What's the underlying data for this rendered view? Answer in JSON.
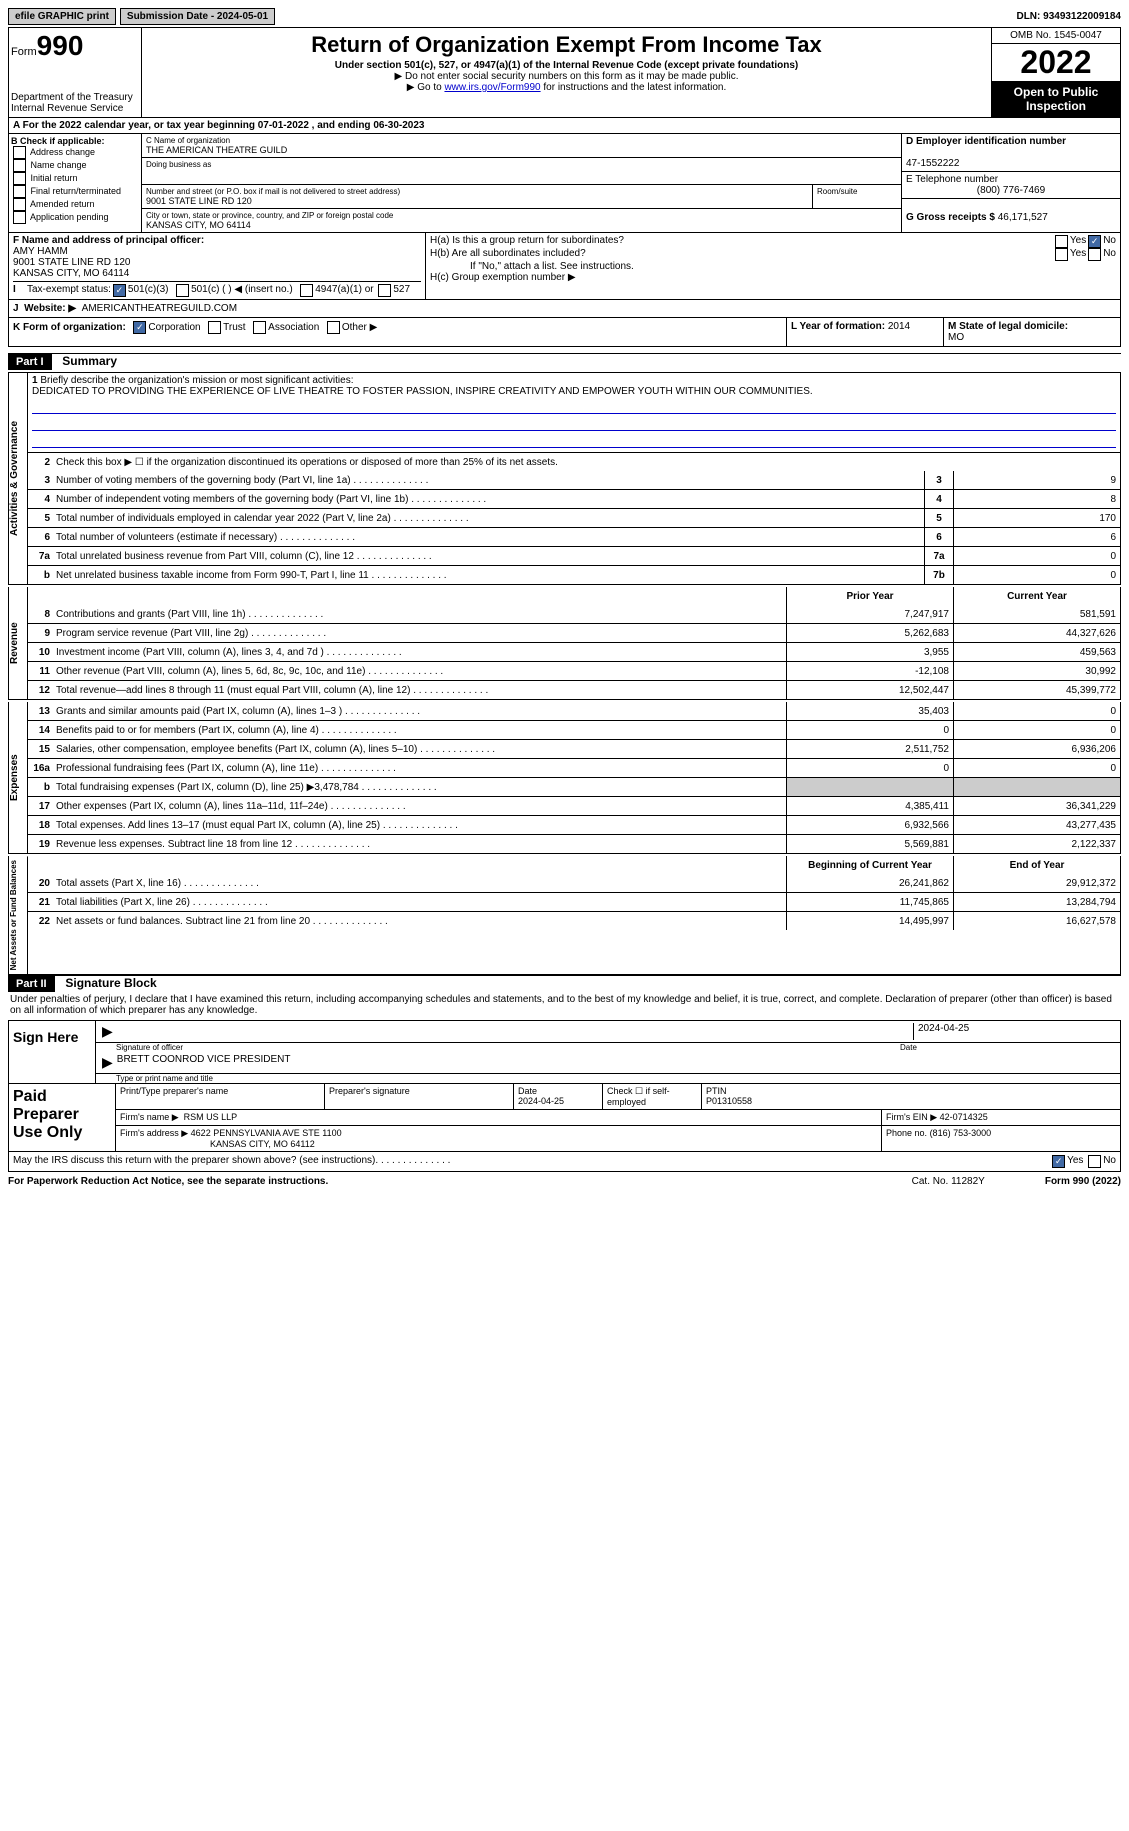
{
  "top": {
    "efile": "efile GRAPHIC print",
    "subdate_lbl": "Submission Date - 2024-05-01",
    "dln": "DLN: 93493122009184"
  },
  "header": {
    "form_word": "Form",
    "form_num": "990",
    "dept": "Department of the Treasury",
    "irs": "Internal Revenue Service",
    "title": "Return of Organization Exempt From Income Tax",
    "sub1": "Under section 501(c), 527, or 4947(a)(1) of the Internal Revenue Code (except private foundations)",
    "note1": "▶ Do not enter social security numbers on this form as it may be made public.",
    "note2_pre": "▶ Go to ",
    "note2_link": "www.irs.gov/Form990",
    "note2_post": " for instructions and the latest information.",
    "omb": "OMB No. 1545-0047",
    "year": "2022",
    "otp": "Open to Public Inspection"
  },
  "period": "A For the 2022 calendar year, or tax year beginning 07-01-2022   , and ending 06-30-2023",
  "b": {
    "label": "B Check if applicable:",
    "opts": [
      "Address change",
      "Name change",
      "Initial return",
      "Final return/terminated",
      "Amended return",
      "Application pending"
    ]
  },
  "c": {
    "name_lbl": "C Name of organization",
    "name": "THE AMERICAN THEATRE GUILD",
    "dba_lbl": "Doing business as",
    "addr_lbl": "Number and street (or P.O. box if mail is not delivered to street address)",
    "room_lbl": "Room/suite",
    "addr": "9001 STATE LINE RD 120",
    "city_lbl": "City or town, state or province, country, and ZIP or foreign postal code",
    "city": "KANSAS CITY, MO  64114"
  },
  "d": {
    "lbl": "D Employer identification number",
    "val": "47-1552222"
  },
  "e": {
    "lbl": "E Telephone number",
    "val": "(800) 776-7469"
  },
  "g": {
    "lbl": "G Gross receipts $ ",
    "val": "46,171,527"
  },
  "f": {
    "lbl": "F Name and address of principal officer:",
    "name": "AMY HAMM",
    "addr1": "9001 STATE LINE RD 120",
    "addr2": "KANSAS CITY, MO  64114"
  },
  "h": {
    "a": "H(a)  Is this a group return for subordinates?",
    "b": "H(b)  Are all subordinates included?",
    "bnote": "If \"No,\" attach a list. See instructions.",
    "c": "H(c)  Group exemption number ▶",
    "yes": "Yes",
    "no": "No"
  },
  "i": {
    "lbl": "Tax-exempt status:",
    "o1": "501(c)(3)",
    "o2": "501(c) (  ) ◀ (insert no.)",
    "o3": "4947(a)(1) or",
    "o4": "527"
  },
  "j": {
    "lbl": "Website: ▶",
    "val": "AMERICANTHEATREGUILD.COM"
  },
  "k": {
    "lbl": "K Form of organization:",
    "o1": "Corporation",
    "o2": "Trust",
    "o3": "Association",
    "o4": "Other ▶"
  },
  "l": {
    "lbl": "L Year of formation: ",
    "val": "2014"
  },
  "m": {
    "lbl": "M State of legal domicile:",
    "val": "MO"
  },
  "part1": {
    "num": "Part I",
    "title": "Summary"
  },
  "summary": {
    "line1_lbl": "Briefly describe the organization's mission or most significant activities:",
    "line1_txt": "DEDICATED TO PROVIDING THE EXPERIENCE OF LIVE THEATRE TO FOSTER PASSION, INSPIRE CREATIVITY AND EMPOWER YOUTH WITHIN OUR COMMUNITIES.",
    "line2": "Check this box ▶ ☐ if the organization discontinued its operations or disposed of more than 25% of its net assets.",
    "prior_lbl": "Prior Year",
    "curr_lbl": "Current Year",
    "begin_lbl": "Beginning of Current Year",
    "end_lbl": "End of Year",
    "rows_gov": [
      {
        "n": "3",
        "l": "Number of voting members of the governing body (Part VI, line 1a)",
        "b": "3",
        "v": "9"
      },
      {
        "n": "4",
        "l": "Number of independent voting members of the governing body (Part VI, line 1b)",
        "b": "4",
        "v": "8"
      },
      {
        "n": "5",
        "l": "Total number of individuals employed in calendar year 2022 (Part V, line 2a)",
        "b": "5",
        "v": "170"
      },
      {
        "n": "6",
        "l": "Total number of volunteers (estimate if necessary)",
        "b": "6",
        "v": "6"
      },
      {
        "n": "7a",
        "l": "Total unrelated business revenue from Part VIII, column (C), line 12",
        "b": "7a",
        "v": "0"
      },
      {
        "n": "b",
        "l": "Net unrelated business taxable income from Form 990-T, Part I, line 11",
        "b": "7b",
        "v": "0"
      }
    ],
    "rows_rev": [
      {
        "n": "8",
        "l": "Contributions and grants (Part VIII, line 1h)",
        "p": "7,247,917",
        "c": "581,591"
      },
      {
        "n": "9",
        "l": "Program service revenue (Part VIII, line 2g)",
        "p": "5,262,683",
        "c": "44,327,626"
      },
      {
        "n": "10",
        "l": "Investment income (Part VIII, column (A), lines 3, 4, and 7d )",
        "p": "3,955",
        "c": "459,563"
      },
      {
        "n": "11",
        "l": "Other revenue (Part VIII, column (A), lines 5, 6d, 8c, 9c, 10c, and 11e)",
        "p": "-12,108",
        "c": "30,992"
      },
      {
        "n": "12",
        "l": "Total revenue—add lines 8 through 11 (must equal Part VIII, column (A), line 12)",
        "p": "12,502,447",
        "c": "45,399,772"
      }
    ],
    "rows_exp": [
      {
        "n": "13",
        "l": "Grants and similar amounts paid (Part IX, column (A), lines 1–3 )",
        "p": "35,403",
        "c": "0"
      },
      {
        "n": "14",
        "l": "Benefits paid to or for members (Part IX, column (A), line 4)",
        "p": "0",
        "c": "0"
      },
      {
        "n": "15",
        "l": "Salaries, other compensation, employee benefits (Part IX, column (A), lines 5–10)",
        "p": "2,511,752",
        "c": "6,936,206"
      },
      {
        "n": "16a",
        "l": "Professional fundraising fees (Part IX, column (A), line 11e)",
        "p": "0",
        "c": "0"
      },
      {
        "n": "b",
        "l": "Total fundraising expenses (Part IX, column (D), line 25) ▶3,478,784",
        "p": "",
        "c": "",
        "grey": true
      },
      {
        "n": "17",
        "l": "Other expenses (Part IX, column (A), lines 11a–11d, 11f–24e)",
        "p": "4,385,411",
        "c": "36,341,229"
      },
      {
        "n": "18",
        "l": "Total expenses. Add lines 13–17 (must equal Part IX, column (A), line 25)",
        "p": "6,932,566",
        "c": "43,277,435"
      },
      {
        "n": "19",
        "l": "Revenue less expenses. Subtract line 18 from line 12",
        "p": "5,569,881",
        "c": "2,122,337"
      }
    ],
    "rows_net": [
      {
        "n": "20",
        "l": "Total assets (Part X, line 16)",
        "p": "26,241,862",
        "c": "29,912,372"
      },
      {
        "n": "21",
        "l": "Total liabilities (Part X, line 26)",
        "p": "11,745,865",
        "c": "13,284,794"
      },
      {
        "n": "22",
        "l": "Net assets or fund balances. Subtract line 21 from line 20",
        "p": "14,495,997",
        "c": "16,627,578"
      }
    ]
  },
  "part2": {
    "num": "Part II",
    "title": "Signature Block"
  },
  "sig": {
    "decl": "Under penalties of perjury, I declare that I have examined this return, including accompanying schedules and statements, and to the best of my knowledge and belief, it is true, correct, and complete. Declaration of preparer (other than officer) is based on all information of which preparer has any knowledge.",
    "sign_here": "Sign Here",
    "sig_off": "Signature of officer",
    "date_lbl": "Date",
    "date": "2024-04-25",
    "name_title": "BRETT COONROD  VICE PRESIDENT",
    "type_lbl": "Type or print name and title"
  },
  "prep": {
    "label": "Paid Preparer Use Only",
    "print_lbl": "Print/Type preparer's name",
    "sig_lbl": "Preparer's signature",
    "date_lbl": "Date",
    "date": "2024-04-25",
    "check_lbl": "Check ☐ if self-employed",
    "ptin_lbl": "PTIN",
    "ptin": "P01310558",
    "firm_name_lbl": "Firm's name   ▶",
    "firm_name": "RSM US LLP",
    "firm_ein_lbl": "Firm's EIN ▶",
    "firm_ein": "42-0714325",
    "firm_addr_lbl": "Firm's address ▶",
    "firm_addr1": "4622 PENNSYLVANIA AVE STE 1100",
    "firm_addr2": "KANSAS CITY, MO  64112",
    "phone_lbl": "Phone no.",
    "phone": "(816) 753-3000"
  },
  "discuss": "May the IRS discuss this return with the preparer shown above? (see instructions)",
  "footer": {
    "pra": "For Paperwork Reduction Act Notice, see the separate instructions.",
    "cat": "Cat. No. 11282Y",
    "form": "Form 990 (2022)"
  },
  "labels": {
    "gov": "Activities & Governance",
    "rev": "Revenue",
    "exp": "Expenses",
    "net": "Net Assets or Fund Balances"
  }
}
